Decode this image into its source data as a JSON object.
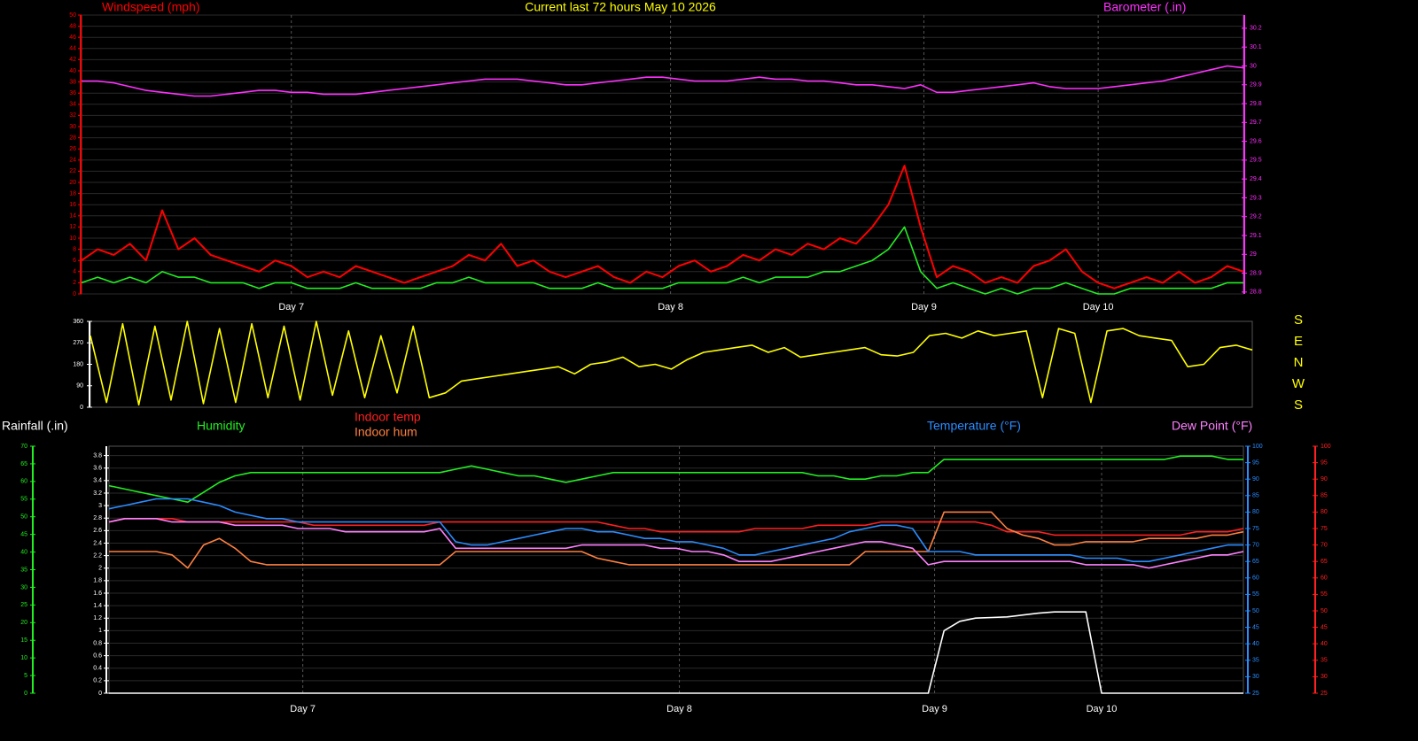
{
  "chart_data": [
    {
      "type": "line",
      "title": "Current last 72 hours May 10 2026",
      "ylabel": "Windspeed (mph)",
      "y2label": "Barometer (.in)",
      "xticks": [
        {
          "value": 13,
          "label": "Day 7"
        },
        {
          "value": 36.5,
          "label": "Day 8"
        },
        {
          "value": 52.2,
          "label": "Day 9"
        },
        {
          "value": 63,
          "label": "Day 10"
        }
      ],
      "ylim": [
        0,
        50
      ],
      "yticks": [
        0,
        2,
        4,
        6,
        8,
        10,
        12,
        14,
        16,
        18,
        20,
        22,
        24,
        26,
        28,
        30,
        32,
        34,
        36,
        38,
        40,
        42,
        44,
        46,
        48,
        50
      ],
      "y2lim": [
        28.79,
        30.27
      ],
      "y2ticks": [
        28.8,
        28.9,
        29,
        29.1,
        29.2,
        29.3,
        29.4,
        29.5,
        29.6,
        29.7,
        29.8,
        29.9,
        30,
        30.1,
        30.2
      ],
      "grid": true,
      "series": [
        {
          "color": "#ff0000",
          "values": [
            6,
            8,
            7,
            9,
            6,
            15,
            8,
            10,
            7,
            6,
            5,
            4,
            6,
            5,
            3,
            4,
            3,
            5,
            4,
            3,
            2,
            3,
            4,
            5,
            7,
            6,
            9,
            5,
            6,
            4,
            3,
            4,
            5,
            3,
            2,
            4,
            3,
            5,
            6,
            4,
            5,
            7,
            6,
            8,
            7,
            9,
            8,
            10,
            9,
            12,
            16,
            23,
            12,
            3,
            5,
            4,
            2,
            3,
            2,
            5,
            6,
            8,
            4,
            2,
            1,
            2,
            3,
            2,
            4,
            2,
            3,
            5,
            4
          ]
        },
        {
          "color": "#22ee22",
          "values": [
            2,
            3,
            2,
            3,
            2,
            4,
            3,
            3,
            2,
            2,
            2,
            1,
            2,
            2,
            1,
            1,
            1,
            2,
            1,
            1,
            1,
            1,
            2,
            2,
            3,
            2,
            2,
            2,
            2,
            1,
            1,
            1,
            2,
            1,
            1,
            1,
            1,
            2,
            2,
            2,
            2,
            3,
            2,
            3,
            3,
            3,
            4,
            4,
            5,
            6,
            8,
            12,
            4,
            1,
            2,
            1,
            0,
            1,
            0,
            1,
            1,
            2,
            1,
            0,
            0,
            1,
            1,
            1,
            1,
            1,
            1,
            2,
            2
          ]
        },
        {
          "color": "#ff30ff",
          "axis": "y2",
          "values": [
            29.92,
            29.92,
            29.91,
            29.89,
            29.87,
            29.86,
            29.85,
            29.84,
            29.84,
            29.85,
            29.86,
            29.87,
            29.87,
            29.86,
            29.86,
            29.85,
            29.85,
            29.85,
            29.86,
            29.87,
            29.88,
            29.89,
            29.9,
            29.91,
            29.92,
            29.93,
            29.93,
            29.93,
            29.92,
            29.91,
            29.9,
            29.9,
            29.91,
            29.92,
            29.93,
            29.94,
            29.94,
            29.93,
            29.92,
            29.92,
            29.92,
            29.93,
            29.94,
            29.93,
            29.93,
            29.92,
            29.92,
            29.91,
            29.9,
            29.9,
            29.89,
            29.88,
            29.9,
            29.86,
            29.86,
            29.87,
            29.88,
            29.89,
            29.9,
            29.91,
            29.89,
            29.88,
            29.88,
            29.88,
            29.89,
            29.9,
            29.91,
            29.92,
            29.94,
            29.96,
            29.98,
            30,
            29.99
          ]
        }
      ]
    },
    {
      "type": "line",
      "ylim": [
        0,
        360
      ],
      "yticks": [
        0,
        90,
        180,
        270,
        360
      ],
      "compass_labels": [
        "S",
        "E",
        "N",
        "W",
        "S"
      ],
      "series": [
        {
          "color": "#ffff00",
          "values": [
            300,
            20,
            350,
            10,
            340,
            30,
            360,
            15,
            330,
            20,
            350,
            40,
            340,
            30,
            360,
            50,
            320,
            40,
            300,
            60,
            340,
            40,
            60,
            110,
            120,
            130,
            140,
            150,
            160,
            170,
            140,
            180,
            190,
            210,
            170,
            180,
            160,
            200,
            230,
            240,
            250,
            260,
            230,
            250,
            210,
            220,
            230,
            240,
            250,
            220,
            215,
            230,
            300,
            310,
            290,
            320,
            300,
            310,
            320,
            40,
            330,
            310,
            20,
            320,
            330,
            300,
            290,
            280,
            170,
            180,
            250,
            260,
            240
          ]
        }
      ]
    },
    {
      "type": "line",
      "xticks": [
        {
          "value": 12.3,
          "label": "Day 7"
        },
        {
          "value": 36.2,
          "label": "Day 8"
        },
        {
          "value": 52.4,
          "label": "Day 9"
        },
        {
          "value": 63,
          "label": "Day 10"
        }
      ],
      "ylim": [
        0,
        3.95
      ],
      "yticks": [
        0,
        0.2,
        0.4,
        0.6,
        0.8,
        1,
        1.2,
        1.4,
        1.6,
        1.8,
        2,
        2.2,
        2.4,
        2.6,
        2.8,
        3,
        3.2,
        3.4,
        3.6,
        3.8
      ],
      "y2lim": [
        25,
        100
      ],
      "y2ticks": [
        25,
        30,
        35,
        40,
        45,
        50,
        55,
        60,
        65,
        70,
        75,
        80,
        85,
        90,
        95,
        100
      ],
      "y3lim": [
        0,
        70
      ],
      "y3ticks": [
        0,
        5,
        10,
        15,
        20,
        25,
        30,
        35,
        40,
        45,
        50,
        55,
        60,
        65,
        70
      ],
      "y4lim": [
        25,
        100
      ],
      "y4ticks": [
        25,
        30,
        35,
        40,
        45,
        50,
        55,
        60,
        65,
        70,
        75,
        80,
        85,
        90,
        95,
        100
      ],
      "grid": true,
      "series": [
        {
          "name": "Rainfall (.in)",
          "color": "#ffffff",
          "values": [
            0,
            0,
            0,
            0,
            0,
            0,
            0,
            0,
            0,
            0,
            0,
            0,
            0,
            0,
            0,
            0,
            0,
            0,
            0,
            0,
            0,
            0,
            0,
            0,
            0,
            0,
            0,
            0,
            0,
            0,
            0,
            0,
            0,
            0,
            0,
            0,
            0,
            0,
            0,
            0,
            0,
            0,
            0,
            0,
            0,
            0,
            0,
            0,
            0,
            0,
            0,
            0,
            0,
            1.0,
            1.15,
            1.2,
            1.21,
            1.22,
            1.25,
            1.28,
            1.3,
            1.3,
            1.3,
            0,
            0,
            0,
            0,
            0,
            0,
            0,
            0,
            0,
            0
          ]
        },
        {
          "name": "Humidity",
          "color": "#22ee22",
          "axis": "y2",
          "values": [
            88,
            87,
            86,
            85,
            84,
            83,
            86,
            89,
            91,
            92,
            92,
            92,
            92,
            92,
            92,
            92,
            92,
            92,
            92,
            92,
            92,
            92,
            93,
            94,
            93,
            92,
            91,
            91,
            90,
            89,
            90,
            91,
            92,
            92,
            92,
            92,
            92,
            92,
            92,
            92,
            92,
            92,
            92,
            92,
            92,
            91,
            91,
            90,
            90,
            91,
            91,
            92,
            92,
            96,
            96,
            96,
            96,
            96,
            96,
            96,
            96,
            96,
            96,
            96,
            96,
            96,
            96,
            96,
            97,
            97,
            97,
            96,
            96
          ]
        },
        {
          "name": "Indoor temp",
          "color": "#ff2020",
          "axis": "y4",
          "values": [
            77,
            78,
            78,
            78,
            78,
            77,
            77,
            77,
            77,
            77,
            77,
            77,
            77,
            76,
            76,
            76,
            76,
            76,
            76,
            76,
            76,
            77,
            77,
            77,
            77,
            77,
            77,
            77,
            77,
            77,
            77,
            77,
            76,
            75,
            75,
            74,
            74,
            74,
            74,
            74,
            74,
            75,
            75,
            75,
            75,
            76,
            76,
            76,
            76,
            77,
            77,
            77,
            77,
            77,
            77,
            77,
            76,
            74,
            74,
            74,
            73,
            73,
            73,
            73,
            73,
            73,
            73,
            73,
            73,
            74,
            74,
            74,
            75
          ]
        },
        {
          "name": "Indoor hum",
          "color": "#ff8040",
          "axis": "y4",
          "values": [
            68,
            68,
            68,
            68,
            67,
            63,
            70,
            72,
            69,
            65,
            64,
            64,
            64,
            64,
            64,
            64,
            64,
            64,
            64,
            64,
            64,
            64,
            68,
            68,
            68,
            68,
            68,
            68,
            68,
            68,
            68,
            66,
            65,
            64,
            64,
            64,
            64,
            64,
            64,
            64,
            64,
            64,
            64,
            64,
            64,
            64,
            64,
            64,
            68,
            68,
            68,
            68,
            68,
            80,
            80,
            80,
            80,
            75,
            73,
            72,
            70,
            70,
            71,
            71,
            71,
            71,
            72,
            72,
            72,
            72,
            73,
            73,
            74
          ]
        },
        {
          "name": "Temperature (°F)",
          "color": "#2a8cff",
          "axis": "y2",
          "values": [
            81,
            82,
            83,
            84,
            84,
            84,
            83,
            82,
            80,
            79,
            78,
            78,
            77,
            77,
            77,
            77,
            77,
            77,
            77,
            77,
            77,
            77,
            71,
            70,
            70,
            71,
            72,
            73,
            74,
            75,
            75,
            74,
            74,
            73,
            72,
            72,
            71,
            71,
            70,
            69,
            67,
            67,
            68,
            69,
            70,
            71,
            72,
            74,
            75,
            76,
            76,
            75,
            68,
            68,
            68,
            67,
            67,
            67,
            67,
            67,
            67,
            67,
            66,
            66,
            66,
            65,
            65,
            66,
            67,
            68,
            69,
            70,
            70
          ]
        },
        {
          "name": "Dew Point (°F)",
          "color": "#ff80ff",
          "axis": "y2",
          "values": [
            77,
            78,
            78,
            78,
            77,
            77,
            77,
            77,
            76,
            76,
            76,
            76,
            75,
            75,
            75,
            74,
            74,
            74,
            74,
            74,
            74,
            75,
            69,
            69,
            69,
            69,
            69,
            69,
            69,
            69,
            70,
            70,
            70,
            70,
            70,
            69,
            69,
            68,
            68,
            67,
            65,
            65,
            65,
            66,
            67,
            68,
            69,
            70,
            71,
            71,
            70,
            69,
            64,
            65,
            65,
            65,
            65,
            65,
            65,
            65,
            65,
            65,
            64,
            64,
            64,
            64,
            63,
            64,
            65,
            66,
            67,
            67,
            68
          ]
        }
      ]
    }
  ]
}
